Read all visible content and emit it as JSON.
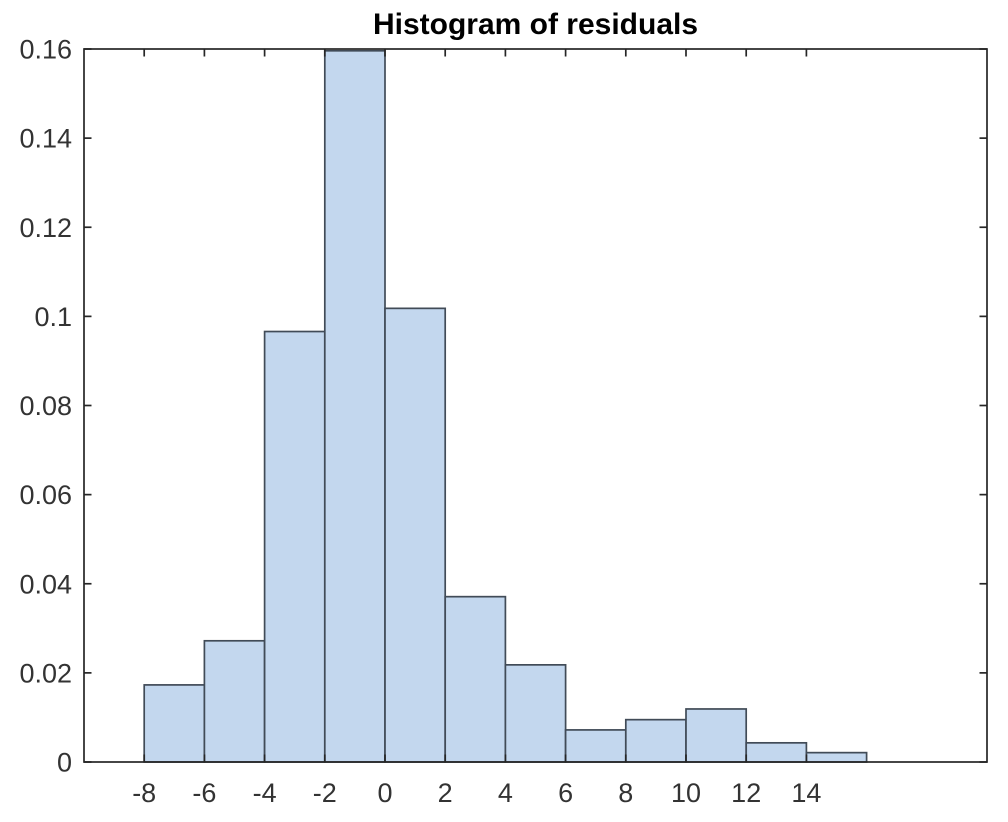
{
  "chart_data": {
    "type": "bar",
    "subtype": "histogram",
    "title": "Histogram of residuals",
    "xlabel": "",
    "ylabel": "",
    "bin_edges": [
      -8,
      -6,
      -4,
      -2,
      0,
      2,
      4,
      6,
      8,
      10,
      12,
      14,
      16
    ],
    "values": [
      0.0173,
      0.0272,
      0.0966,
      0.1596,
      0.1018,
      0.0371,
      0.0218,
      0.0072,
      0.0095,
      0.0119,
      0.0043,
      0.0021
    ],
    "xlim": [
      -10,
      20
    ],
    "ylim": [
      0,
      0.16
    ],
    "xticks": [
      {
        "value": -8,
        "label": "-8"
      },
      {
        "value": -6,
        "label": "-6"
      },
      {
        "value": -4,
        "label": "-4"
      },
      {
        "value": -2,
        "label": "-2"
      },
      {
        "value": 0,
        "label": "0"
      },
      {
        "value": 2,
        "label": "2"
      },
      {
        "value": 4,
        "label": "4"
      },
      {
        "value": 6,
        "label": "6"
      },
      {
        "value": 8,
        "label": "8"
      },
      {
        "value": 10,
        "label": "10"
      },
      {
        "value": 12,
        "label": "12"
      },
      {
        "value": 14,
        "label": "14"
      }
    ],
    "yticks": [
      {
        "value": 0,
        "label": "0"
      },
      {
        "value": 0.02,
        "label": "0.02"
      },
      {
        "value": 0.04,
        "label": "0.04"
      },
      {
        "value": 0.06,
        "label": "0.06"
      },
      {
        "value": 0.08,
        "label": "0.08"
      },
      {
        "value": 0.1,
        "label": "0.1"
      },
      {
        "value": 0.12,
        "label": "0.12"
      },
      {
        "value": 0.14,
        "label": "0.14"
      },
      {
        "value": 0.16,
        "label": "0.16"
      }
    ],
    "grid": false,
    "legend_position": "none",
    "colors": {
      "bar_fill": "#c3d7ee",
      "bar_edge": "#414b57",
      "axis": "#262626",
      "tick_label": "#333333",
      "title": "#000000",
      "background": "#ffffff"
    }
  }
}
